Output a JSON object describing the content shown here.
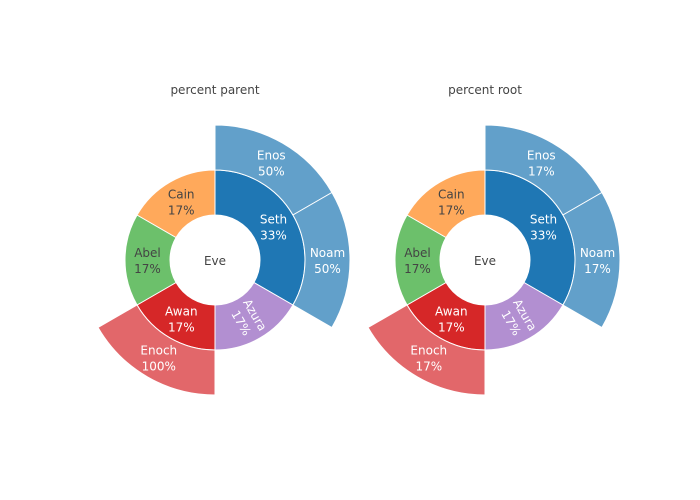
{
  "chart_data": [
    {
      "type": "sunburst",
      "title": "percent parent",
      "root": "Eve",
      "hole": true,
      "inner_ring": [
        {
          "name": "Seth",
          "pct_label": "33%",
          "value": 2,
          "color": "#1f77b4",
          "text_color": "#ffffff"
        },
        {
          "name": "Azura",
          "pct_label": "17%",
          "value": 1,
          "color": "#b28fd1",
          "text_color": "#ffffff"
        },
        {
          "name": "Awan",
          "pct_label": "17%",
          "value": 1,
          "color": "#d62728",
          "text_color": "#ffffff"
        },
        {
          "name": "Abel",
          "pct_label": "17%",
          "value": 1,
          "color": "#6cc06b",
          "text_color": "#444444"
        },
        {
          "name": "Cain",
          "pct_label": "17%",
          "value": 1,
          "color": "#ffa95b",
          "text_color": "#444444"
        }
      ],
      "outer_ring": [
        {
          "name": "Enos",
          "parent": "Seth",
          "pct_label": "50%",
          "value": 1,
          "color": "#62a0ca",
          "text_color": "#ffffff"
        },
        {
          "name": "Noam",
          "parent": "Seth",
          "pct_label": "50%",
          "value": 1,
          "color": "#62a0ca",
          "text_color": "#ffffff"
        },
        {
          "name": "Enoch",
          "parent": "Awan",
          "pct_label": "100%",
          "value": 1,
          "color": "#e2676a",
          "text_color": "#ffffff"
        }
      ]
    },
    {
      "type": "sunburst",
      "title": "percent root",
      "root": "Eve",
      "hole": true,
      "inner_ring": [
        {
          "name": "Seth",
          "pct_label": "33%",
          "value": 2,
          "color": "#1f77b4",
          "text_color": "#ffffff"
        },
        {
          "name": "Azura",
          "pct_label": "17%",
          "value": 1,
          "color": "#b28fd1",
          "text_color": "#ffffff"
        },
        {
          "name": "Awan",
          "pct_label": "17%",
          "value": 1,
          "color": "#d62728",
          "text_color": "#ffffff"
        },
        {
          "name": "Abel",
          "pct_label": "17%",
          "value": 1,
          "color": "#6cc06b",
          "text_color": "#444444"
        },
        {
          "name": "Cain",
          "pct_label": "17%",
          "value": 1,
          "color": "#ffa95b",
          "text_color": "#444444"
        }
      ],
      "outer_ring": [
        {
          "name": "Enos",
          "parent": "Seth",
          "pct_label": "17%",
          "value": 1,
          "color": "#62a0ca",
          "text_color": "#ffffff"
        },
        {
          "name": "Noam",
          "parent": "Seth",
          "pct_label": "17%",
          "value": 1,
          "color": "#62a0ca",
          "text_color": "#ffffff"
        },
        {
          "name": "Enoch",
          "parent": "Awan",
          "pct_label": "17%",
          "value": 1,
          "color": "#e2676a",
          "text_color": "#ffffff"
        }
      ]
    }
  ]
}
